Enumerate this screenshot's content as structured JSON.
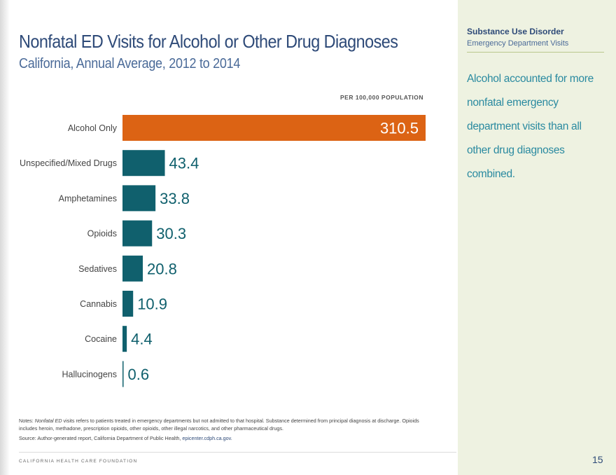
{
  "sidebar": {
    "title": "Substance Use Disorder",
    "subtitle": "Emergency Department Visits",
    "callout": "Alcohol accounted for more nonfatal emergency department visits than all other drug diagnoses combined."
  },
  "notes": {
    "label": "Notes:",
    "term": "Nonfatal ED",
    "text": "visits refers to patients treated in emergency departments but not admitted to that hospital. Substance determined from principal diagnosis at discharge. Opioids includes heroin, methadone, prescription opioids, other opioids, other illegal narcotics, and other pharmaceutical drugs.",
    "source_text": "Source: Author-generated report, California Department of Public Health,",
    "source_link": "epicenter.cdph.ca.gov."
  },
  "footer": {
    "org": "CALIFORNIA HEALTH CARE FOUNDATION",
    "page": "15"
  },
  "colors": {
    "highlight": "#dc6314",
    "bar": "#10606d",
    "title": "#2e4a78",
    "callout": "#2a8aa0"
  },
  "chart_data": {
    "type": "bar",
    "orientation": "horizontal",
    "title": "Nonfatal ED Visits for Alcohol or Other Drug Diagnoses",
    "subtitle": "California, Annual Average, 2012 to 2014",
    "units_label": "PER 100,000 POPULATION",
    "categories": [
      "Alcohol Only",
      "Unspecified/Mixed Drugs",
      "Amphetamines",
      "Opioids",
      "Sedatives",
      "Cannabis",
      "Cocaine",
      "Hallucinogens"
    ],
    "values": [
      310.5,
      43.4,
      33.8,
      30.3,
      20.8,
      10.9,
      4.4,
      0.6
    ],
    "value_labels": [
      "310.5",
      "43.4",
      "33.8",
      "30.3",
      "20.8",
      "10.9",
      "4.4",
      "0.6"
    ],
    "highlight_index": 0,
    "xlim": [
      0,
      310.5
    ],
    "grid": false,
    "legend": "none"
  }
}
